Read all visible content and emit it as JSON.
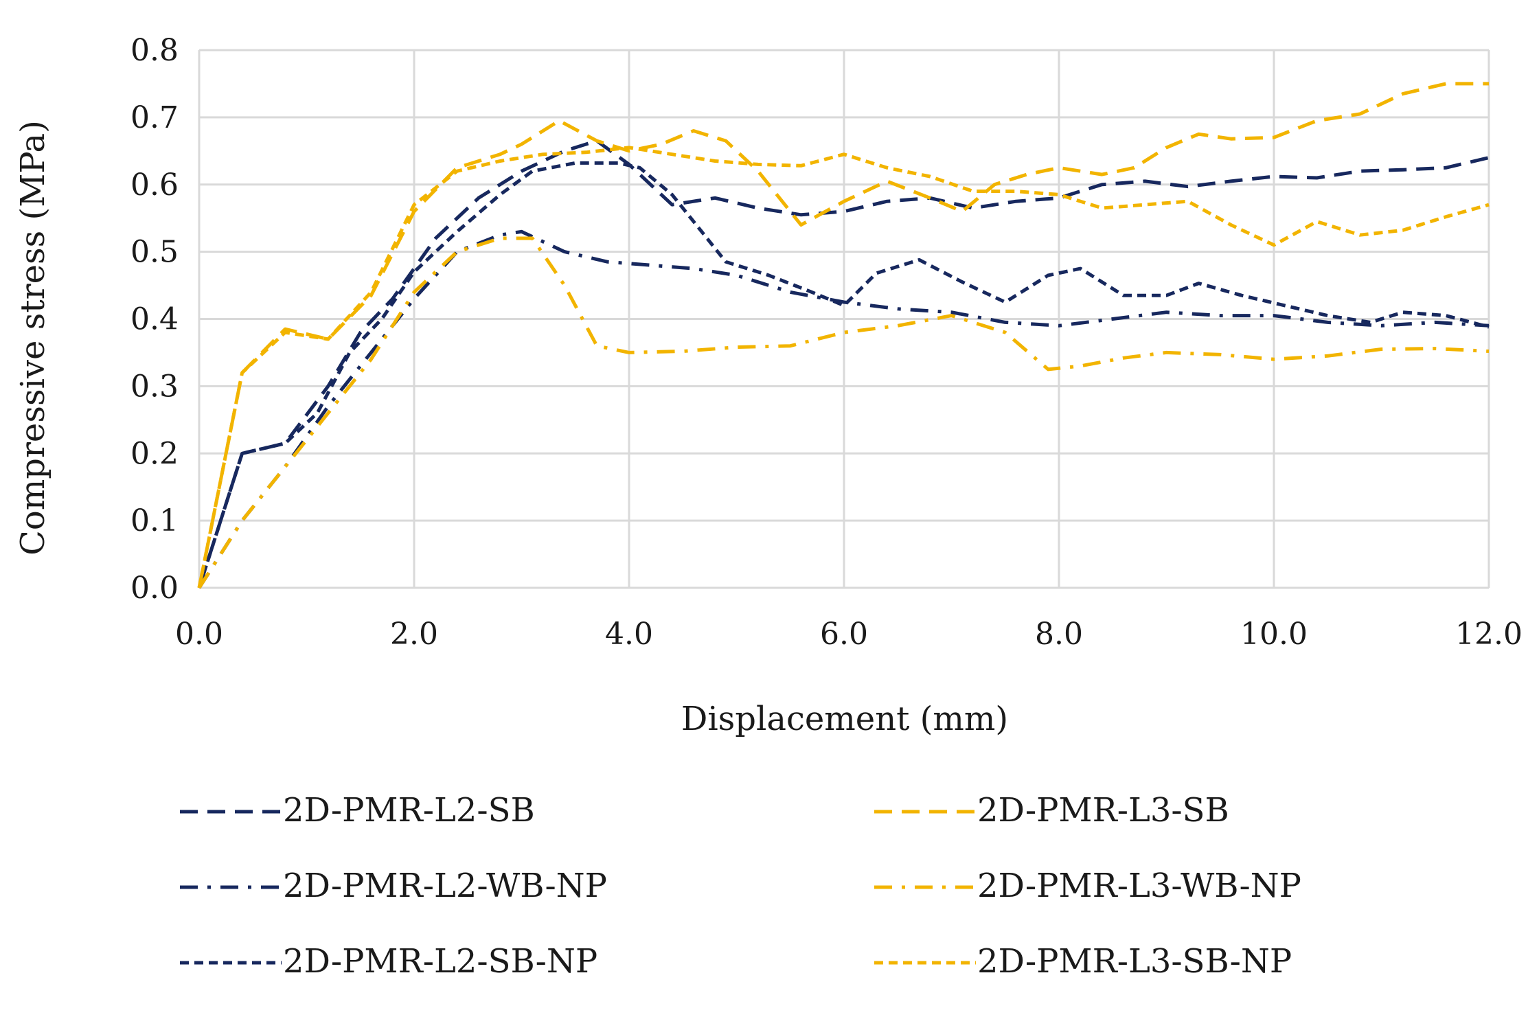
{
  "chart_data": {
    "type": "line",
    "title": "",
    "xlabel": "Displacement (mm)",
    "ylabel": "Compressive stress (MPa)",
    "xlim": [
      0,
      12
    ],
    "ylim": [
      0,
      0.8
    ],
    "xticks": [
      0,
      2,
      4,
      6,
      8,
      10,
      12
    ],
    "yticks": [
      0,
      0.1,
      0.2,
      0.3,
      0.4,
      0.5,
      0.6,
      0.7,
      0.8
    ],
    "xtick_labels": [
      "0.0",
      "2.0",
      "4.0",
      "6.0",
      "8.0",
      "10.0",
      "12.0"
    ],
    "ytick_labels": [
      "0.0",
      "0.1",
      "0.2",
      "0.3",
      "0.4",
      "0.5",
      "0.6",
      "0.7",
      "0.8"
    ],
    "grid": true,
    "legend_position": "bottom",
    "series": [
      {
        "name": "2D-PMR-L2-SB",
        "color": "#17285e",
        "dash": "long-dash",
        "x": [
          0,
          0.4,
          0.8,
          1.2,
          1.5,
          1.8,
          2.2,
          2.6,
          3.0,
          3.4,
          3.7,
          4.0,
          4.4,
          4.8,
          5.2,
          5.6,
          6.0,
          6.4,
          6.8,
          7.2,
          7.6,
          8.0,
          8.4,
          8.8,
          9.2,
          9.6,
          10.0,
          10.4,
          10.8,
          11.2,
          11.6,
          12.0
        ],
        "y": [
          0,
          0.2,
          0.215,
          0.3,
          0.38,
          0.43,
          0.52,
          0.58,
          0.62,
          0.65,
          0.665,
          0.63,
          0.57,
          0.58,
          0.565,
          0.555,
          0.56,
          0.575,
          0.58,
          0.565,
          0.575,
          0.58,
          0.6,
          0.605,
          0.597,
          0.605,
          0.612,
          0.61,
          0.62,
          0.622,
          0.625,
          0.64
        ]
      },
      {
        "name": "2D-PMR-L2-WB-NP",
        "color": "#17285e",
        "dash": "dash-dot",
        "x": [
          0,
          0.4,
          0.8,
          1.2,
          1.6,
          2.0,
          2.4,
          2.8,
          3.0,
          3.4,
          3.8,
          4.2,
          4.6,
          5.0,
          5.5,
          6.0,
          6.5,
          7.0,
          7.5,
          8.0,
          8.5,
          9.0,
          9.5,
          10.0,
          10.5,
          11.0,
          11.5,
          12.0
        ],
        "y": [
          0,
          0.1,
          0.18,
          0.27,
          0.35,
          0.43,
          0.5,
          0.525,
          0.53,
          0.5,
          0.485,
          0.48,
          0.475,
          0.465,
          0.44,
          0.425,
          0.415,
          0.41,
          0.395,
          0.39,
          0.4,
          0.41,
          0.405,
          0.405,
          0.395,
          0.39,
          0.395,
          0.39
        ]
      },
      {
        "name": "2D-PMR-L2-SB-NP",
        "color": "#17285e",
        "dash": "short-dash",
        "x": [
          0,
          0.4,
          0.8,
          1.1,
          1.4,
          1.7,
          2.0,
          2.4,
          2.8,
          3.1,
          3.5,
          3.9,
          4.1,
          4.4,
          4.9,
          5.3,
          5.7,
          6.0,
          6.3,
          6.7,
          7.1,
          7.5,
          7.9,
          8.2,
          8.6,
          9.0,
          9.3,
          9.7,
          10.1,
          10.5,
          10.9,
          11.2,
          11.6,
          12.0
        ],
        "y": [
          0,
          0.2,
          0.215,
          0.26,
          0.35,
          0.4,
          0.47,
          0.53,
          0.585,
          0.62,
          0.632,
          0.632,
          0.625,
          0.585,
          0.485,
          0.465,
          0.44,
          0.42,
          0.468,
          0.488,
          0.455,
          0.425,
          0.465,
          0.475,
          0.435,
          0.435,
          0.453,
          0.435,
          0.42,
          0.405,
          0.395,
          0.41,
          0.405,
          0.388
        ]
      },
      {
        "name": "2D-PMR-L3-SB",
        "color": "#f2b400",
        "dash": "long-dash",
        "x": [
          0,
          0.4,
          0.8,
          1.2,
          1.6,
          2.0,
          2.4,
          2.8,
          3.0,
          3.35,
          3.7,
          4.0,
          4.3,
          4.6,
          4.9,
          5.2,
          5.6,
          6.0,
          6.4,
          6.8,
          7.1,
          7.4,
          7.7,
          8.0,
          8.4,
          8.7,
          9.0,
          9.3,
          9.6,
          10.0,
          10.4,
          10.8,
          11.2,
          11.6,
          12.0
        ],
        "y": [
          0,
          0.32,
          0.385,
          0.37,
          0.435,
          0.56,
          0.625,
          0.645,
          0.66,
          0.695,
          0.665,
          0.65,
          0.66,
          0.68,
          0.665,
          0.62,
          0.54,
          0.575,
          0.605,
          0.58,
          0.56,
          0.6,
          0.615,
          0.625,
          0.615,
          0.625,
          0.655,
          0.675,
          0.668,
          0.67,
          0.695,
          0.705,
          0.735,
          0.75,
          0.75
        ]
      },
      {
        "name": "2D-PMR-L3-WB-NP",
        "color": "#f2b400",
        "dash": "dash-dot",
        "x": [
          0,
          0.4,
          0.8,
          1.2,
          1.6,
          2.0,
          2.4,
          2.8,
          3.1,
          3.4,
          3.7,
          4.0,
          4.5,
          5.0,
          5.5,
          6.0,
          6.5,
          7.0,
          7.5,
          7.9,
          8.2,
          8.6,
          9.0,
          9.5,
          10.0,
          10.5,
          11.0,
          11.5,
          12.0
        ],
        "y": [
          0,
          0.1,
          0.18,
          0.26,
          0.34,
          0.44,
          0.5,
          0.52,
          0.52,
          0.45,
          0.36,
          0.35,
          0.352,
          0.358,
          0.36,
          0.38,
          0.39,
          0.405,
          0.38,
          0.325,
          0.33,
          0.342,
          0.35,
          0.347,
          0.34,
          0.345,
          0.355,
          0.356,
          0.352
        ]
      },
      {
        "name": "2D-PMR-L3-SB-NP",
        "color": "#f2b400",
        "dash": "short-dash",
        "x": [
          0,
          0.4,
          0.8,
          1.2,
          1.6,
          2.0,
          2.4,
          2.8,
          3.2,
          3.6,
          4.0,
          4.4,
          4.8,
          5.2,
          5.6,
          6.0,
          6.4,
          6.8,
          7.2,
          7.6,
          8.0,
          8.4,
          8.8,
          9.2,
          9.6,
          10.0,
          10.4,
          10.8,
          11.2,
          11.6,
          12.0
        ],
        "y": [
          0,
          0.32,
          0.38,
          0.37,
          0.44,
          0.57,
          0.62,
          0.635,
          0.645,
          0.648,
          0.655,
          0.645,
          0.635,
          0.63,
          0.628,
          0.645,
          0.625,
          0.612,
          0.59,
          0.59,
          0.585,
          0.565,
          0.57,
          0.575,
          0.54,
          0.51,
          0.545,
          0.525,
          0.532,
          0.552,
          0.57
        ]
      }
    ]
  }
}
